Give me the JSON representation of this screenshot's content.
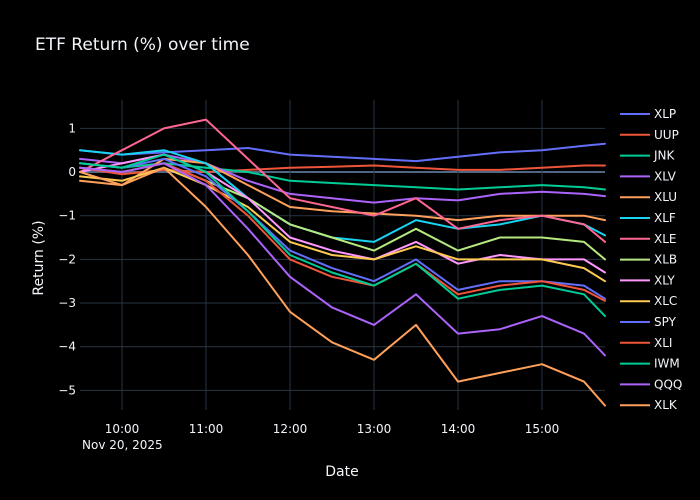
{
  "colors": {
    "background": "#000000",
    "plot_background": "#000000",
    "grid": "#283442",
    "zero_line": "#506784",
    "text": "#f2f5fa"
  },
  "chart_data": {
    "type": "line",
    "title": "ETF Return (%) over time",
    "xlabel": "Date",
    "ylabel": "Return (%)",
    "x_start": "09:30",
    "x_end": "15:45",
    "x_ticks": [
      {
        "label": "10:00",
        "t": "10:00"
      },
      {
        "label": "11:00",
        "t": "11:00"
      },
      {
        "label": "12:00",
        "t": "12:00"
      },
      {
        "label": "13:00",
        "t": "13:00"
      },
      {
        "label": "14:00",
        "t": "14:00"
      },
      {
        "label": "15:00",
        "t": "15:00"
      }
    ],
    "x_date_label": "Nov 20, 2025",
    "ylim": [
      -5.45,
      1.65
    ],
    "y_ticks": [
      {
        "label": "1",
        "v": 1
      },
      {
        "label": "0",
        "v": 0
      },
      {
        "label": "−1",
        "v": -1
      },
      {
        "label": "−2",
        "v": -2
      },
      {
        "label": "−3",
        "v": -3
      },
      {
        "label": "−4",
        "v": -4
      },
      {
        "label": "−5",
        "v": -5
      }
    ],
    "series": [
      {
        "name": "XLP",
        "color": "#636efa",
        "times": [
          "09:30",
          "10:00",
          "10:30",
          "11:00",
          "11:30",
          "12:00",
          "12:30",
          "13:00",
          "13:30",
          "14:00",
          "14:30",
          "15:00",
          "15:30",
          "15:45"
        ],
        "values": [
          0.5,
          0.4,
          0.45,
          0.5,
          0.55,
          0.4,
          0.35,
          0.3,
          0.25,
          0.35,
          0.45,
          0.5,
          0.6,
          0.65
        ]
      },
      {
        "name": "UUP",
        "color": "#EF553B",
        "times": [
          "09:30",
          "10:00",
          "10:30",
          "11:00",
          "11:30",
          "12:00",
          "12:30",
          "13:00",
          "13:30",
          "14:00",
          "14:30",
          "15:00",
          "15:30",
          "15:45"
        ],
        "values": [
          0.1,
          -0.05,
          0.05,
          0.0,
          0.05,
          0.1,
          0.12,
          0.15,
          0.1,
          0.05,
          0.05,
          0.1,
          0.15,
          0.15
        ]
      },
      {
        "name": "JNK",
        "color": "#00cc96",
        "times": [
          "09:30",
          "10:00",
          "10:30",
          "11:00",
          "11:30",
          "12:00",
          "12:30",
          "13:00",
          "13:30",
          "14:00",
          "14:30",
          "15:00",
          "15:30",
          "15:45"
        ],
        "values": [
          0.2,
          0.1,
          0.2,
          0.1,
          0.0,
          -0.2,
          -0.25,
          -0.3,
          -0.35,
          -0.4,
          -0.35,
          -0.3,
          -0.35,
          -0.4
        ]
      },
      {
        "name": "XLV",
        "color": "#ab63fa",
        "times": [
          "09:30",
          "10:00",
          "10:30",
          "11:00",
          "11:30",
          "12:00",
          "12:30",
          "13:00",
          "13:30",
          "14:00",
          "14:30",
          "15:00",
          "15:30",
          "15:45"
        ],
        "values": [
          0.3,
          0.2,
          0.4,
          0.2,
          -0.2,
          -0.5,
          -0.6,
          -0.7,
          -0.6,
          -0.65,
          -0.5,
          -0.45,
          -0.5,
          -0.55
        ]
      },
      {
        "name": "XLU",
        "color": "#FFA15A",
        "times": [
          "09:30",
          "10:00",
          "10:30",
          "11:00",
          "11:30",
          "12:00",
          "12:30",
          "13:00",
          "13:30",
          "14:00",
          "14:30",
          "15:00",
          "15:30",
          "15:45"
        ],
        "values": [
          -0.2,
          -0.3,
          0.3,
          0.2,
          -0.3,
          -0.8,
          -0.9,
          -0.95,
          -1.0,
          -1.1,
          -1.0,
          -1.0,
          -1.0,
          -1.1
        ]
      },
      {
        "name": "XLF",
        "color": "#19d3f3",
        "times": [
          "09:30",
          "10:00",
          "10:30",
          "11:00",
          "11:30",
          "12:00",
          "12:30",
          "13:00",
          "13:30",
          "14:00",
          "14:30",
          "15:00",
          "15:30",
          "15:45"
        ],
        "values": [
          0.5,
          0.4,
          0.5,
          0.2,
          -0.6,
          -1.2,
          -1.5,
          -1.6,
          -1.1,
          -1.3,
          -1.2,
          -1.0,
          -1.2,
          -1.45
        ]
      },
      {
        "name": "XLE",
        "color": "#FF6692",
        "times": [
          "09:30",
          "10:00",
          "10:30",
          "11:00",
          "11:30",
          "12:00",
          "12:30",
          "13:00",
          "13:30",
          "14:00",
          "14:30",
          "15:00",
          "15:30",
          "15:45"
        ],
        "values": [
          0.0,
          0.5,
          1.0,
          1.2,
          0.3,
          -0.6,
          -0.8,
          -1.0,
          -0.6,
          -1.3,
          -1.1,
          -1.0,
          -1.2,
          -1.6
        ]
      },
      {
        "name": "XLB",
        "color": "#B6E880",
        "times": [
          "09:30",
          "10:00",
          "10:30",
          "11:00",
          "11:30",
          "12:00",
          "12:30",
          "13:00",
          "13:30",
          "14:00",
          "14:30",
          "15:00",
          "15:30",
          "15:45"
        ],
        "values": [
          0.1,
          0.0,
          0.2,
          -0.2,
          -0.6,
          -1.2,
          -1.5,
          -1.8,
          -1.3,
          -1.8,
          -1.5,
          -1.5,
          -1.6,
          -2.0
        ]
      },
      {
        "name": "XLY",
        "color": "#FF97FF",
        "times": [
          "09:30",
          "10:00",
          "10:30",
          "11:00",
          "11:30",
          "12:00",
          "12:30",
          "13:00",
          "13:30",
          "14:00",
          "14:30",
          "15:00",
          "15:30",
          "15:45"
        ],
        "values": [
          0.0,
          0.2,
          0.4,
          0.0,
          -0.6,
          -1.5,
          -1.8,
          -2.0,
          -1.6,
          -2.1,
          -1.9,
          -2.0,
          -2.0,
          -2.3
        ]
      },
      {
        "name": "XLC",
        "color": "#FECB52",
        "times": [
          "09:30",
          "10:00",
          "10:30",
          "11:00",
          "11:30",
          "12:00",
          "12:30",
          "13:00",
          "13:30",
          "14:00",
          "14:30",
          "15:00",
          "15:30",
          "15:45"
        ],
        "values": [
          -0.1,
          -0.2,
          0.1,
          -0.3,
          -0.8,
          -1.6,
          -1.9,
          -2.0,
          -1.7,
          -2.0,
          -2.0,
          -2.0,
          -2.2,
          -2.5
        ]
      },
      {
        "name": "SPY",
        "color": "#636efa",
        "times": [
          "09:30",
          "10:00",
          "10:30",
          "11:00",
          "11:30",
          "12:00",
          "12:30",
          "13:00",
          "13:30",
          "14:00",
          "14:30",
          "15:00",
          "15:30",
          "15:45"
        ],
        "values": [
          0.2,
          0.1,
          0.3,
          -0.1,
          -0.9,
          -1.8,
          -2.2,
          -2.5,
          -2.0,
          -2.7,
          -2.5,
          -2.5,
          -2.6,
          -2.9
        ]
      },
      {
        "name": "XLI",
        "color": "#EF553B",
        "times": [
          "09:30",
          "10:00",
          "10:30",
          "11:00",
          "11:30",
          "12:00",
          "12:30",
          "13:00",
          "13:30",
          "14:00",
          "14:30",
          "15:00",
          "15:30",
          "15:45"
        ],
        "values": [
          0.1,
          0.0,
          0.2,
          -0.2,
          -1.0,
          -2.0,
          -2.4,
          -2.6,
          -2.1,
          -2.8,
          -2.6,
          -2.5,
          -2.7,
          -2.95
        ]
      },
      {
        "name": "IWM",
        "color": "#00cc96",
        "times": [
          "09:30",
          "10:00",
          "10:30",
          "11:00",
          "11:30",
          "12:00",
          "12:30",
          "13:00",
          "13:30",
          "14:00",
          "14:30",
          "15:00",
          "15:30",
          "15:45"
        ],
        "values": [
          0.2,
          0.1,
          0.4,
          0.0,
          -0.9,
          -1.9,
          -2.3,
          -2.6,
          -2.1,
          -2.9,
          -2.7,
          -2.6,
          -2.8,
          -3.3
        ]
      },
      {
        "name": "QQQ",
        "color": "#ab63fa",
        "times": [
          "09:30",
          "10:00",
          "10:30",
          "11:00",
          "11:30",
          "12:00",
          "12:30",
          "13:00",
          "13:30",
          "14:00",
          "14:30",
          "15:00",
          "15:30",
          "15:45"
        ],
        "values": [
          0.1,
          0.0,
          0.2,
          -0.3,
          -1.3,
          -2.4,
          -3.1,
          -3.5,
          -2.8,
          -3.7,
          -3.6,
          -3.3,
          -3.7,
          -4.2
        ]
      },
      {
        "name": "XLK",
        "color": "#FFA15A",
        "times": [
          "09:30",
          "10:00",
          "10:30",
          "11:00",
          "11:30",
          "12:00",
          "12:30",
          "13:00",
          "13:30",
          "14:00",
          "14:30",
          "15:00",
          "15:30",
          "15:45"
        ],
        "values": [
          0.0,
          -0.3,
          0.1,
          -0.8,
          -1.9,
          -3.2,
          -3.9,
          -4.3,
          -3.5,
          -4.8,
          -4.6,
          -4.4,
          -4.8,
          -5.35
        ]
      }
    ]
  }
}
